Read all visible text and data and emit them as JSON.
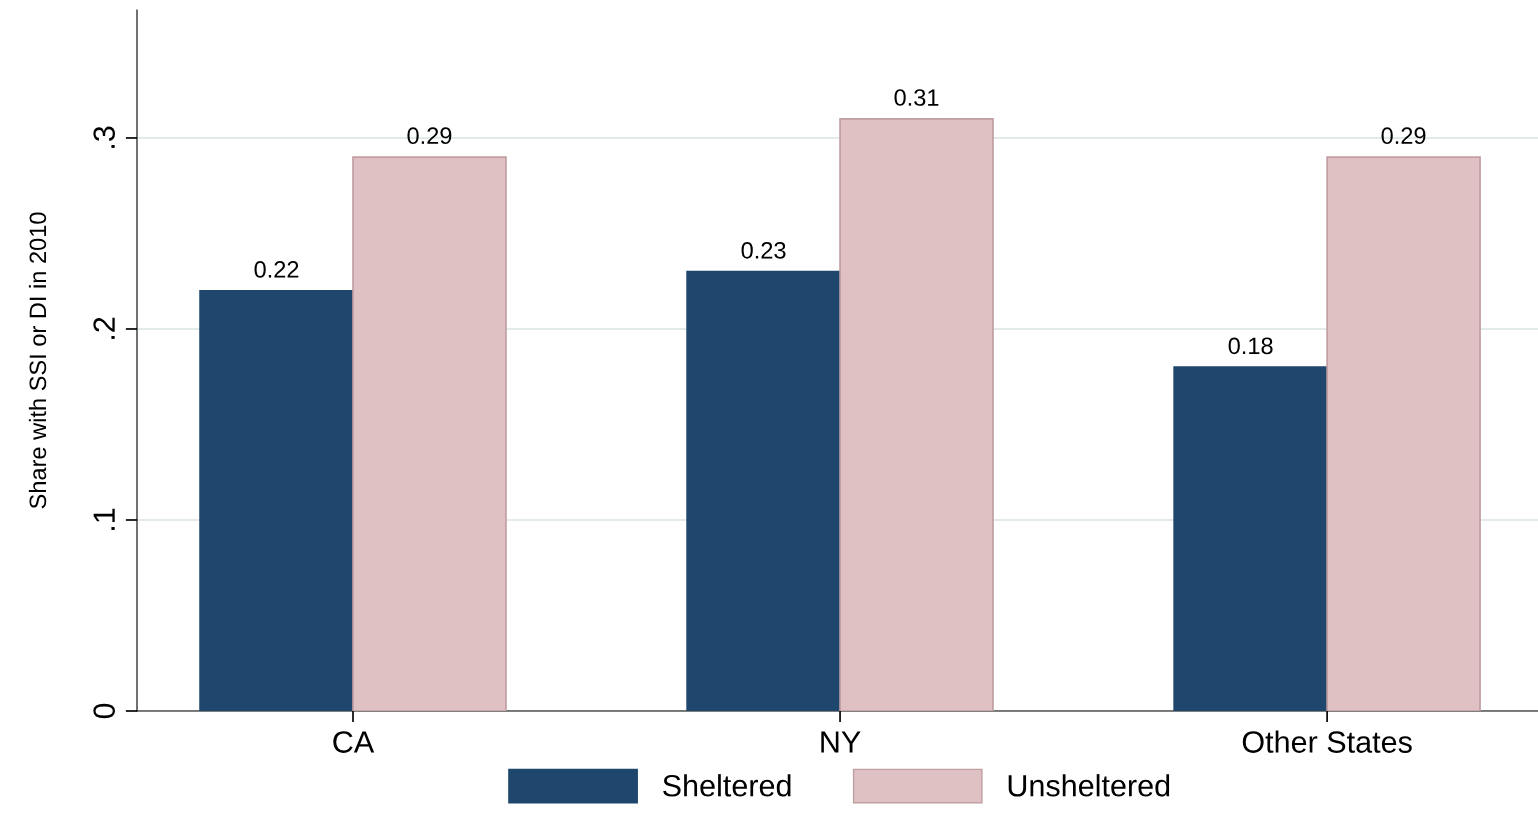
{
  "chart_data": {
    "type": "bar",
    "ylabel": "Share with SSI or DI in 2010",
    "categories": [
      "CA",
      "NY",
      "Other States"
    ],
    "series": [
      {
        "name": "Sheltered",
        "color": "#1f476d",
        "values": [
          0.22,
          0.23,
          0.18
        ]
      },
      {
        "name": "Unsheltered",
        "color": "#dfc1c3",
        "values": [
          0.29,
          0.31,
          0.29
        ]
      }
    ],
    "ylim": [
      0,
      0.367
    ],
    "yticks": [
      {
        "value": 0,
        "label": "0"
      },
      {
        "value": 0.1,
        "label": ".1"
      },
      {
        "value": 0.2,
        "label": ".2"
      },
      {
        "value": 0.3,
        "label": ".3"
      }
    ],
    "grid": "y",
    "legend": "bottom",
    "data_labels": true
  }
}
